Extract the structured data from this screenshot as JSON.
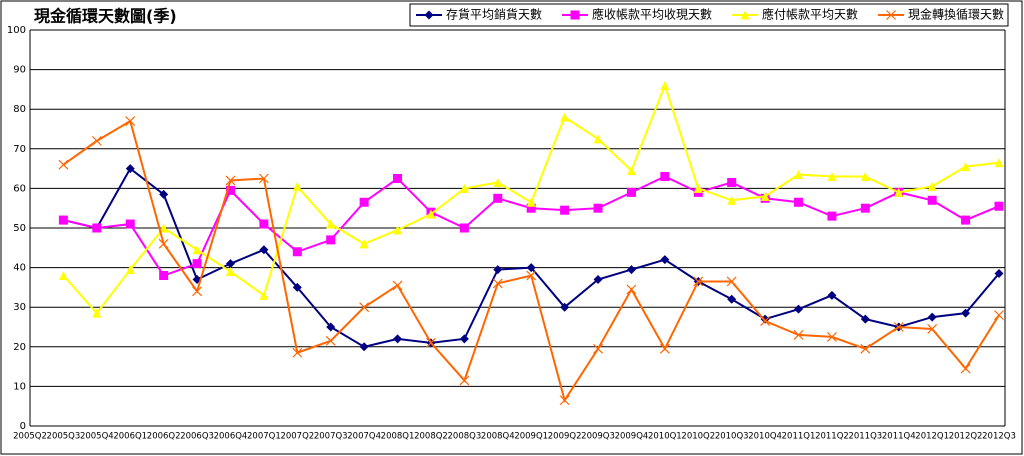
{
  "chart_data": {
    "type": "line",
    "title": "現金循環天數圖(季)",
    "categories": [
      "2005Q2",
      "2005Q3",
      "2005Q4",
      "2006Q1",
      "2006Q2",
      "2006Q3",
      "2006Q4",
      "2007Q1",
      "2007Q2",
      "2007Q3",
      "2007Q4",
      "2008Q1",
      "2008Q2",
      "2008Q3",
      "2008Q4",
      "2009Q1",
      "2009Q2",
      "2009Q3",
      "2009Q4",
      "2010Q1",
      "2010Q2",
      "2010Q3",
      "2010Q4",
      "2011Q1",
      "2011Q2",
      "2011Q3",
      "2011Q4",
      "2012Q1",
      "2012Q2",
      "2012Q3"
    ],
    "series": [
      {
        "name": "存貨平均銷貨天數",
        "color": "#000080",
        "marker": "diamond",
        "values": [
          null,
          52,
          50,
          65,
          58.5,
          37,
          41,
          44.5,
          35,
          25,
          20,
          22,
          21,
          22,
          39.5,
          40,
          30,
          37,
          39.5,
          42,
          36.5,
          32,
          27,
          29.5,
          33,
          27,
          25,
          27.5,
          28.5,
          38.5
        ]
      },
      {
        "name": "應收帳款平均收現天數",
        "color": "#ff00ff",
        "marker": "square",
        "values": [
          null,
          52,
          50,
          51,
          38,
          41,
          59.5,
          51,
          44,
          47,
          56.5,
          62.5,
          54,
          50,
          57.5,
          55,
          54.5,
          55,
          59,
          63,
          59,
          61.5,
          57.5,
          56.5,
          53,
          55,
          59,
          57,
          52,
          55.5
        ]
      },
      {
        "name": "應付帳款平均天數",
        "color": "#ffff00",
        "marker": "triangle",
        "values": [
          null,
          38,
          28.5,
          39.5,
          50,
          44.5,
          39,
          33,
          60.5,
          51,
          46,
          49.5,
          53.5,
          60,
          61.5,
          56.5,
          78,
          72.5,
          64.5,
          86,
          60,
          57,
          58,
          63.5,
          63,
          63,
          59,
          60.5,
          65.5,
          66.5
        ]
      },
      {
        "name": "現金轉換循環天數",
        "color": "#ff6600",
        "marker": "x",
        "values": [
          null,
          66,
          72,
          77,
          46,
          34,
          62,
          62.5,
          18.5,
          21.5,
          30,
          35.5,
          21,
          11.5,
          36,
          38,
          6.5,
          19.5,
          34.5,
          19.5,
          36.5,
          36.5,
          26.5,
          23,
          22.5,
          19.5,
          25,
          24.5,
          14.5,
          28
        ]
      }
    ],
    "ylim": [
      0,
      100
    ],
    "yticks": [
      0,
      10,
      20,
      30,
      40,
      50,
      60,
      70,
      80,
      90,
      100
    ],
    "grid": true,
    "legend": "top-right"
  }
}
